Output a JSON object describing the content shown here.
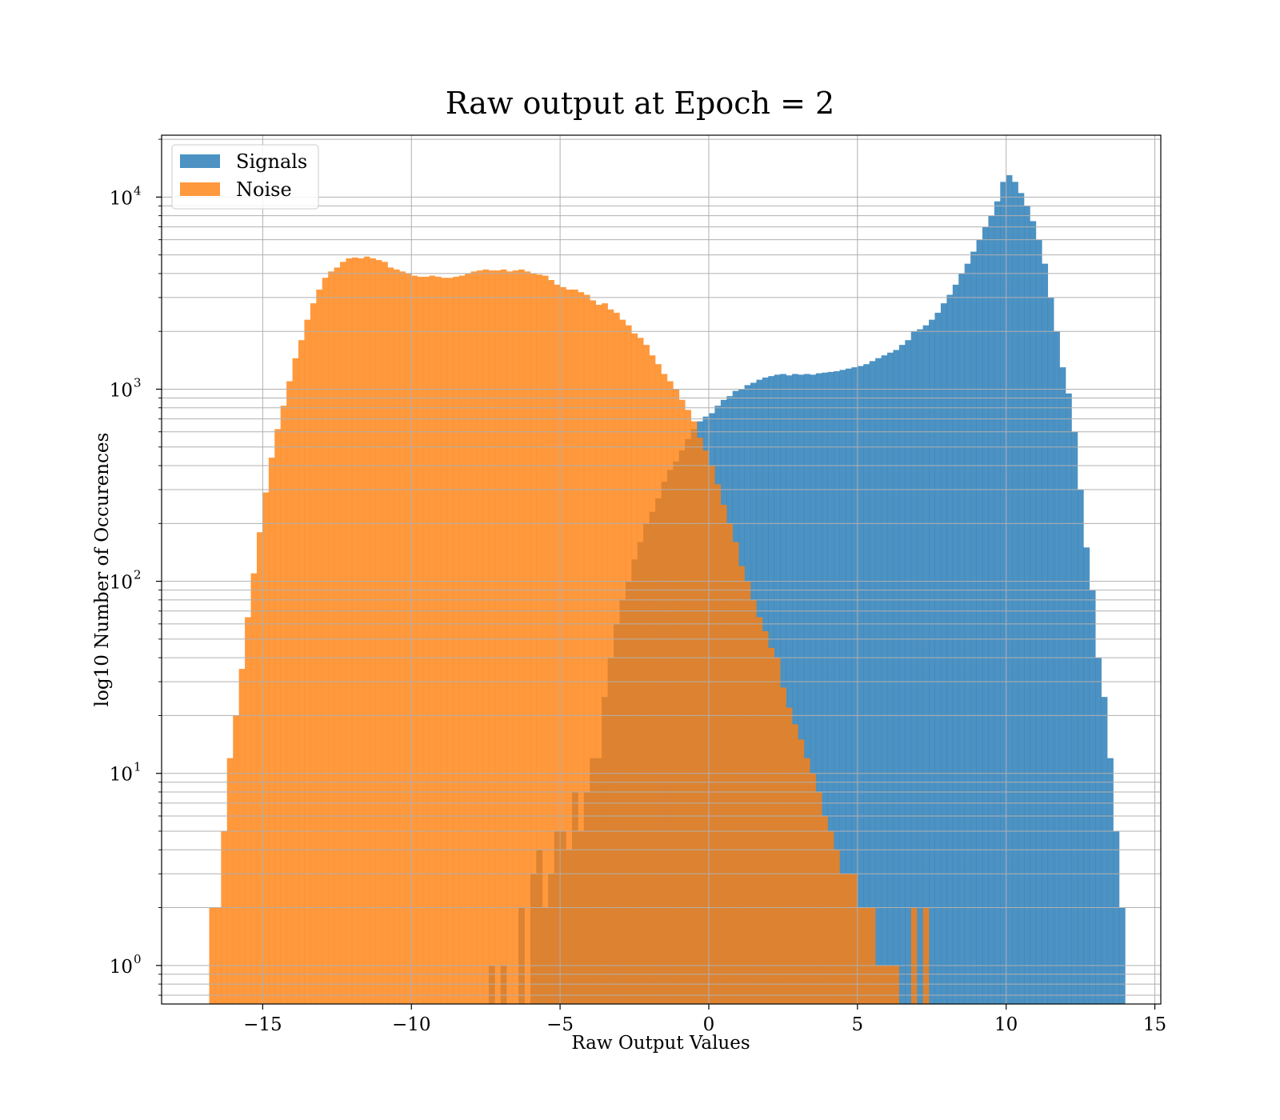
{
  "colors": {
    "signals": "#1f77b4",
    "noise": "#ff7f0e",
    "grid": "#b0b0b0"
  },
  "chart_data": {
    "type": "histogram",
    "title": "Raw output at Epoch = 2",
    "xlabel": "Raw Output Values",
    "ylabel": "log10 Number of Occurences",
    "xlim": [
      -18.4,
      15.2
    ],
    "ylim": [
      0.63,
      21000
    ],
    "yscale": "log",
    "grid": true,
    "legend_position": "upper-left",
    "x_ticks": [
      -15,
      -10,
      -5,
      0,
      5,
      10,
      15
    ],
    "x_tick_labels": [
      "−15",
      "−10",
      "−5",
      "0",
      "5",
      "10",
      "15"
    ],
    "y_ticks": [
      {
        "value": 1,
        "base": "10",
        "exp": "0"
      },
      {
        "value": 10,
        "base": "10",
        "exp": "1"
      },
      {
        "value": 100,
        "base": "10",
        "exp": "2"
      },
      {
        "value": 1000,
        "base": "10",
        "exp": "3"
      },
      {
        "value": 10000,
        "base": "10",
        "exp": "4"
      }
    ],
    "series": [
      {
        "name": "Signals",
        "color": "#1f77b4",
        "alpha": 0.8,
        "bins": [
          [
            -7.4,
            1
          ],
          [
            -7.0,
            1
          ],
          [
            -6.4,
            2
          ],
          [
            -6.0,
            3
          ],
          [
            -5.8,
            4
          ],
          [
            -5.6,
            2
          ],
          [
            -5.4,
            3
          ],
          [
            -5.2,
            5
          ],
          [
            -5.0,
            5
          ],
          [
            -4.8,
            4
          ],
          [
            -4.6,
            8
          ],
          [
            -4.4,
            5
          ],
          [
            -4.2,
            8
          ],
          [
            -4.0,
            12
          ],
          [
            -3.8,
            12
          ],
          [
            -3.6,
            25
          ],
          [
            -3.4,
            40
          ],
          [
            -3.2,
            60
          ],
          [
            -3.0,
            80
          ],
          [
            -2.8,
            100
          ],
          [
            -2.6,
            130
          ],
          [
            -2.4,
            160
          ],
          [
            -2.2,
            200
          ],
          [
            -2.0,
            230
          ],
          [
            -1.8,
            270
          ],
          [
            -1.6,
            330
          ],
          [
            -1.4,
            380
          ],
          [
            -1.2,
            420
          ],
          [
            -1.0,
            480
          ],
          [
            -0.8,
            550
          ],
          [
            -0.6,
            620
          ],
          [
            -0.4,
            680
          ],
          [
            -0.2,
            720
          ],
          [
            0.0,
            750
          ],
          [
            0.2,
            820
          ],
          [
            0.4,
            880
          ],
          [
            0.6,
            920
          ],
          [
            0.8,
            980
          ],
          [
            1.0,
            1000
          ],
          [
            1.2,
            1050
          ],
          [
            1.4,
            1080
          ],
          [
            1.6,
            1120
          ],
          [
            1.8,
            1150
          ],
          [
            2.0,
            1170
          ],
          [
            2.2,
            1190
          ],
          [
            2.4,
            1200
          ],
          [
            2.6,
            1180
          ],
          [
            2.8,
            1200
          ],
          [
            3.0,
            1190
          ],
          [
            3.2,
            1200
          ],
          [
            3.4,
            1190
          ],
          [
            3.6,
            1210
          ],
          [
            3.8,
            1220
          ],
          [
            4.0,
            1230
          ],
          [
            4.2,
            1240
          ],
          [
            4.4,
            1260
          ],
          [
            4.6,
            1280
          ],
          [
            4.8,
            1300
          ],
          [
            5.0,
            1320
          ],
          [
            5.2,
            1350
          ],
          [
            5.4,
            1400
          ],
          [
            5.6,
            1450
          ],
          [
            5.8,
            1500
          ],
          [
            6.0,
            1550
          ],
          [
            6.2,
            1600
          ],
          [
            6.4,
            1700
          ],
          [
            6.6,
            1800
          ],
          [
            6.8,
            2000
          ],
          [
            7.0,
            2050
          ],
          [
            7.2,
            2150
          ],
          [
            7.4,
            2300
          ],
          [
            7.6,
            2500
          ],
          [
            7.8,
            2800
          ],
          [
            8.0,
            3100
          ],
          [
            8.2,
            3500
          ],
          [
            8.4,
            4000
          ],
          [
            8.6,
            4500
          ],
          [
            8.8,
            5200
          ],
          [
            9.0,
            6000
          ],
          [
            9.2,
            7000
          ],
          [
            9.4,
            8000
          ],
          [
            9.6,
            9500
          ],
          [
            9.8,
            12000
          ],
          [
            10.0,
            13000
          ],
          [
            10.2,
            12000
          ],
          [
            10.4,
            10500
          ],
          [
            10.6,
            9000
          ],
          [
            10.8,
            7500
          ],
          [
            11.0,
            6000
          ],
          [
            11.2,
            4500
          ],
          [
            11.4,
            3000
          ],
          [
            11.6,
            2000
          ],
          [
            11.8,
            1300
          ],
          [
            12.0,
            950
          ],
          [
            12.2,
            600
          ],
          [
            12.4,
            300
          ],
          [
            12.6,
            150
          ],
          [
            12.8,
            90
          ],
          [
            13.0,
            40
          ],
          [
            13.2,
            25
          ],
          [
            13.4,
            12
          ],
          [
            13.6,
            5
          ],
          [
            13.8,
            2
          ]
        ]
      },
      {
        "name": "Noise",
        "color": "#ff7f0e",
        "alpha": 0.8,
        "bins": [
          [
            -16.8,
            2
          ],
          [
            -16.6,
            2
          ],
          [
            -16.4,
            5
          ],
          [
            -16.2,
            12
          ],
          [
            -16.0,
            20
          ],
          [
            -15.8,
            35
          ],
          [
            -15.6,
            65
          ],
          [
            -15.4,
            110
          ],
          [
            -15.2,
            180
          ],
          [
            -15.0,
            290
          ],
          [
            -14.8,
            440
          ],
          [
            -14.6,
            620
          ],
          [
            -14.4,
            820
          ],
          [
            -14.2,
            1100
          ],
          [
            -14.0,
            1450
          ],
          [
            -13.8,
            1800
          ],
          [
            -13.6,
            2300
          ],
          [
            -13.4,
            2800
          ],
          [
            -13.2,
            3300
          ],
          [
            -13.0,
            3800
          ],
          [
            -12.8,
            4100
          ],
          [
            -12.6,
            4300
          ],
          [
            -12.4,
            4600
          ],
          [
            -12.2,
            4800
          ],
          [
            -12.0,
            4850
          ],
          [
            -11.8,
            4800
          ],
          [
            -11.6,
            4900
          ],
          [
            -11.4,
            4800
          ],
          [
            -11.2,
            4700
          ],
          [
            -11.0,
            4600
          ],
          [
            -10.8,
            4300
          ],
          [
            -10.6,
            4200
          ],
          [
            -10.4,
            4100
          ],
          [
            -10.2,
            4000
          ],
          [
            -10.0,
            3900
          ],
          [
            -9.8,
            3850
          ],
          [
            -9.6,
            3850
          ],
          [
            -9.4,
            3900
          ],
          [
            -9.2,
            3850
          ],
          [
            -9.0,
            3800
          ],
          [
            -8.8,
            3800
          ],
          [
            -8.6,
            3850
          ],
          [
            -8.4,
            3900
          ],
          [
            -8.2,
            4000
          ],
          [
            -8.0,
            4100
          ],
          [
            -7.8,
            4150
          ],
          [
            -7.6,
            4200
          ],
          [
            -7.4,
            4150
          ],
          [
            -7.2,
            4150
          ],
          [
            -7.0,
            4200
          ],
          [
            -6.8,
            4100
          ],
          [
            -6.6,
            4150
          ],
          [
            -6.4,
            4200
          ],
          [
            -6.2,
            4100
          ],
          [
            -6.0,
            4000
          ],
          [
            -5.8,
            3950
          ],
          [
            -5.6,
            3900
          ],
          [
            -5.4,
            3700
          ],
          [
            -5.2,
            3500
          ],
          [
            -5.0,
            3400
          ],
          [
            -4.8,
            3300
          ],
          [
            -4.6,
            3300
          ],
          [
            -4.4,
            3200
          ],
          [
            -4.2,
            3100
          ],
          [
            -4.0,
            2900
          ],
          [
            -3.8,
            2750
          ],
          [
            -3.6,
            2800
          ],
          [
            -3.4,
            2600
          ],
          [
            -3.2,
            2500
          ],
          [
            -3.0,
            2300
          ],
          [
            -2.8,
            2150
          ],
          [
            -2.6,
            1950
          ],
          [
            -2.4,
            1850
          ],
          [
            -2.2,
            1700
          ],
          [
            -2.0,
            1500
          ],
          [
            -1.8,
            1350
          ],
          [
            -1.6,
            1200
          ],
          [
            -1.4,
            1100
          ],
          [
            -1.2,
            1000
          ],
          [
            -1.0,
            880
          ],
          [
            -0.8,
            780
          ],
          [
            -0.6,
            680
          ],
          [
            -0.4,
            560
          ],
          [
            -0.2,
            480
          ],
          [
            0.0,
            400
          ],
          [
            0.2,
            320
          ],
          [
            0.4,
            250
          ],
          [
            0.6,
            200
          ],
          [
            0.8,
            160
          ],
          [
            1.0,
            120
          ],
          [
            1.2,
            100
          ],
          [
            1.4,
            80
          ],
          [
            1.6,
            65
          ],
          [
            1.8,
            55
          ],
          [
            2.0,
            45
          ],
          [
            2.2,
            40
          ],
          [
            2.4,
            28
          ],
          [
            2.6,
            22
          ],
          [
            2.8,
            18
          ],
          [
            3.0,
            15
          ],
          [
            3.2,
            12
          ],
          [
            3.4,
            10
          ],
          [
            3.6,
            8
          ],
          [
            3.8,
            6
          ],
          [
            4.0,
            5
          ],
          [
            4.2,
            4
          ],
          [
            4.4,
            3
          ],
          [
            4.6,
            3
          ],
          [
            4.8,
            3
          ],
          [
            5.0,
            2
          ],
          [
            5.2,
            2
          ],
          [
            5.4,
            2
          ],
          [
            5.6,
            1
          ],
          [
            5.8,
            1
          ],
          [
            6.0,
            1
          ],
          [
            6.2,
            1
          ],
          [
            6.8,
            2
          ],
          [
            7.2,
            2
          ]
        ]
      }
    ]
  }
}
